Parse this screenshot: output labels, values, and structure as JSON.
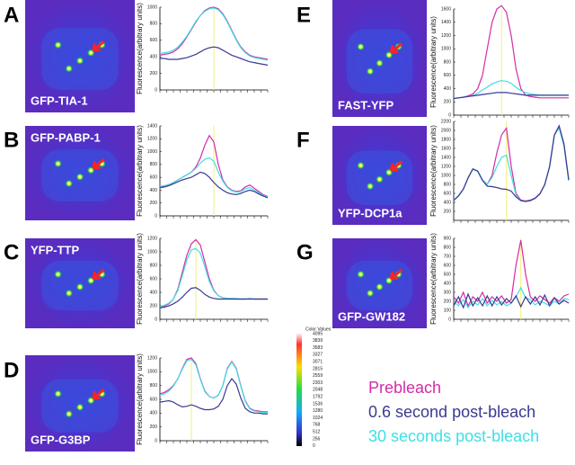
{
  "legend": [
    {
      "name": "Prebleach",
      "color": "#d42ca8"
    },
    {
      "name": "0.6 second post-bleach",
      "color": "#3a3a92"
    },
    {
      "name": "30 seconds post-bleach",
      "color": "#3ee0e4"
    }
  ],
  "colorbar": {
    "title": "Color Values",
    "labels": [
      4095,
      3839,
      3583,
      3327,
      3071,
      2815,
      2559,
      2303,
      2048,
      1792,
      1536,
      1280,
      1024,
      768,
      512,
      256,
      0
    ]
  },
  "chart_data": [
    {
      "type": "line",
      "panel": "A",
      "image_label": "GFP-TIA-1",
      "ylabel": "Fluorescence(arbitrary units)",
      "ylim": [
        0,
        1000
      ],
      "yticks": [
        0,
        200,
        400,
        600,
        800,
        1000
      ],
      "marker_x": 12,
      "marker_color": "#f2f27a",
      "series": [
        {
          "values": [
            420,
            430,
            440,
            460,
            500,
            560,
            640,
            730,
            820,
            900,
            960,
            990,
            1000,
            980,
            920,
            830,
            720,
            610,
            520,
            460,
            420,
            400,
            390,
            380,
            370
          ]
        },
        {
          "values": [
            380,
            380,
            370,
            370,
            370,
            380,
            390,
            410,
            430,
            460,
            490,
            510,
            520,
            510,
            480,
            450,
            420,
            400,
            380,
            360,
            340,
            330,
            320,
            310,
            300
          ]
        },
        {
          "values": [
            440,
            450,
            460,
            480,
            520,
            580,
            650,
            740,
            830,
            900,
            950,
            980,
            990,
            970,
            910,
            820,
            710,
            600,
            510,
            450,
            410,
            390,
            380,
            370,
            360
          ]
        }
      ]
    },
    {
      "type": "line",
      "panel": "B",
      "image_label": "GFP-PABP-1",
      "ylabel": "Fluorescence(arbitrary units)",
      "ylim": [
        0,
        1400
      ],
      "yticks": [
        0,
        200,
        400,
        600,
        800,
        1000,
        1200,
        1400
      ],
      "marker_x": 12,
      "marker_color": "#f2f27a",
      "series": [
        {
          "values": [
            450,
            460,
            480,
            520,
            560,
            600,
            640,
            680,
            760,
            900,
            1100,
            1250,
            1150,
            800,
            560,
            450,
            400,
            380,
            390,
            450,
            480,
            430,
            380,
            330,
            300
          ]
        },
        {
          "values": [
            440,
            450,
            470,
            500,
            530,
            560,
            580,
            600,
            640,
            680,
            660,
            600,
            520,
            450,
            400,
            360,
            340,
            330,
            350,
            380,
            400,
            380,
            340,
            310,
            280
          ]
        },
        {
          "values": [
            460,
            470,
            490,
            520,
            560,
            600,
            640,
            680,
            740,
            820,
            880,
            900,
            850,
            680,
            540,
            440,
            390,
            370,
            380,
            420,
            440,
            400,
            360,
            320,
            290
          ]
        }
      ]
    },
    {
      "type": "line",
      "panel": "C",
      "image_label": "YFP-TTP",
      "ylabel": "Fluorescence(arbitrary units)",
      "ylim": [
        0,
        1200
      ],
      "yticks": [
        0,
        200,
        400,
        600,
        800,
        1000,
        1200
      ],
      "marker_x": 8,
      "marker_color": "#f2f27a",
      "series": [
        {
          "values": [
            180,
            200,
            230,
            300,
            450,
            700,
            950,
            1120,
            1180,
            1100,
            850,
            600,
            430,
            350,
            320,
            310,
            310,
            300,
            300,
            300,
            310,
            300,
            300,
            300,
            300
          ]
        },
        {
          "values": [
            170,
            180,
            200,
            230,
            270,
            330,
            400,
            460,
            470,
            430,
            370,
            330,
            310,
            300,
            300,
            300,
            300,
            300,
            300,
            300,
            300,
            300,
            300,
            300,
            300
          ]
        },
        {
          "values": [
            190,
            210,
            240,
            300,
            430,
            650,
            880,
            1030,
            1050,
            980,
            780,
            560,
            420,
            350,
            320,
            310,
            310,
            310,
            300,
            300,
            310,
            300,
            300,
            300,
            300
          ]
        }
      ]
    },
    {
      "type": "line",
      "panel": "D",
      "image_label": "GFP-G3BP",
      "ylabel": "Fluorescence(arbitrary units)",
      "ylim": [
        0,
        1200
      ],
      "yticks": [
        0,
        200,
        400,
        600,
        800,
        1000,
        1200
      ],
      "marker_x": 7,
      "marker_color": "#f2f27a",
      "series": [
        {
          "values": [
            680,
            700,
            740,
            800,
            900,
            1050,
            1180,
            1200,
            1120,
            900,
            720,
            640,
            620,
            660,
            800,
            1050,
            1150,
            1050,
            800,
            580,
            470,
            440,
            430,
            420,
            420
          ]
        },
        {
          "values": [
            560,
            570,
            580,
            560,
            520,
            490,
            500,
            520,
            500,
            470,
            450,
            450,
            460,
            500,
            600,
            800,
            900,
            820,
            620,
            470,
            420,
            400,
            400,
            390,
            390
          ]
        },
        {
          "values": [
            660,
            680,
            720,
            790,
            900,
            1040,
            1160,
            1180,
            1100,
            890,
            710,
            640,
            620,
            660,
            800,
            1040,
            1140,
            1040,
            790,
            570,
            460,
            430,
            420,
            410,
            410
          ]
        }
      ]
    },
    {
      "type": "line",
      "panel": "E",
      "image_label": "FAST-YFP",
      "ylabel": "Fluorescence(arbitrary units)",
      "ylim": [
        0,
        1600
      ],
      "yticks": [
        0,
        200,
        400,
        600,
        800,
        1000,
        1200,
        1400,
        1600
      ],
      "marker_x": 10,
      "marker_color": "#f2f27a",
      "series": [
        {
          "values": [
            250,
            260,
            270,
            290,
            320,
            400,
            600,
            1000,
            1400,
            1600,
            1650,
            1550,
            1200,
            700,
            400,
            300,
            280,
            270,
            260,
            260,
            260,
            260,
            260,
            260,
            260
          ]
        },
        {
          "values": [
            250,
            260,
            270,
            280,
            290,
            300,
            310,
            320,
            330,
            340,
            340,
            340,
            330,
            320,
            310,
            300,
            300,
            300,
            300,
            300,
            300,
            300,
            300,
            300,
            300
          ]
        },
        {
          "values": [
            250,
            260,
            270,
            280,
            300,
            330,
            380,
            420,
            470,
            500,
            520,
            510,
            480,
            420,
            370,
            340,
            320,
            310,
            300,
            300,
            300,
            300,
            300,
            300,
            300
          ]
        }
      ]
    },
    {
      "type": "line",
      "panel": "F",
      "image_label": "YFP-DCP1a",
      "ylabel": "Fluorescence(arbitrary units)",
      "ylim": [
        0,
        2200
      ],
      "yticks": [
        200,
        400,
        600,
        800,
        1000,
        1200,
        1400,
        1600,
        1800,
        2000,
        2200
      ],
      "marker_x": 11,
      "marker_color": "#f2f27a",
      "series": [
        {
          "values": [
            450,
            550,
            700,
            950,
            1150,
            1100,
            900,
            800,
            1000,
            1500,
            1900,
            2050,
            1200,
            600,
            450,
            430,
            450,
            500,
            600,
            800,
            1200,
            1900,
            2100,
            1700,
            900
          ]
        },
        {
          "values": [
            440,
            540,
            690,
            940,
            1140,
            1090,
            890,
            760,
            750,
            730,
            700,
            690,
            650,
            520,
            440,
            420,
            440,
            490,
            590,
            790,
            1190,
            1890,
            2100,
            1700,
            900
          ]
        },
        {
          "values": [
            450,
            550,
            700,
            950,
            1150,
            1100,
            900,
            800,
            950,
            1200,
            1400,
            1450,
            1000,
            560,
            440,
            420,
            440,
            490,
            590,
            800,
            1200,
            1900,
            2050,
            1650,
            880
          ]
        }
      ]
    },
    {
      "type": "line",
      "panel": "G",
      "image_label": "GFP-GW182",
      "ylabel": "Fluorescence(arbitrary units)",
      "ylim": [
        0,
        900
      ],
      "yticks": [
        0,
        100,
        200,
        300,
        400,
        500,
        600,
        700,
        800,
        900
      ],
      "marker_x": 14,
      "marker_color": "#f2f27a",
      "series": [
        {
          "values": [
            250,
            180,
            300,
            150,
            250,
            200,
            300,
            180,
            250,
            200,
            260,
            180,
            220,
            600,
            880,
            500,
            250,
            200,
            260,
            220,
            180,
            240,
            200,
            260,
            280
          ]
        },
        {
          "values": [
            150,
            250,
            130,
            280,
            150,
            240,
            150,
            260,
            150,
            250,
            160,
            230,
            180,
            260,
            140,
            250,
            170,
            250,
            160,
            270,
            150,
            240,
            170,
            210,
            180
          ]
        },
        {
          "values": [
            200,
            150,
            220,
            130,
            200,
            160,
            230,
            150,
            210,
            160,
            200,
            150,
            180,
            250,
            350,
            240,
            220,
            160,
            200,
            180,
            150,
            200,
            170,
            230,
            220
          ]
        }
      ]
    }
  ]
}
